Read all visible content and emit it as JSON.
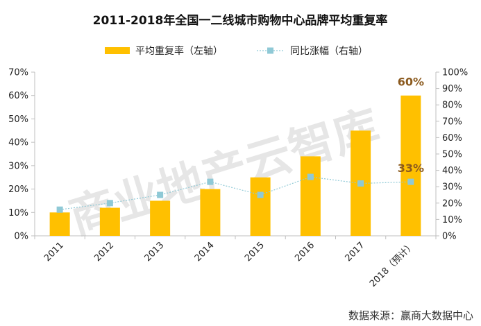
{
  "title": "2011-2018年全国一二线城市购物中心品牌平均重复率",
  "legend": {
    "bar_label": "平均重复率（左轴）",
    "line_label": "同比涨幅（右轴）"
  },
  "source": "数据来源：赢商大数据中心",
  "watermark": "商业地产云智库",
  "colors": {
    "bar": "#FFC000",
    "line": "#8FC9D6",
    "marker": "#8FC9D6",
    "data_label": "#8B5A1E",
    "axis": "#BFBFBF"
  },
  "chart_data": {
    "type": "bar",
    "categories": [
      "2011",
      "2012",
      "2013",
      "2014",
      "2015",
      "2016",
      "2017",
      "2018（预计）"
    ],
    "series": [
      {
        "name": "平均重复率（左轴）",
        "type": "bar",
        "axis": "left",
        "values": [
          10,
          12,
          15,
          20,
          25,
          34,
          45,
          60
        ]
      },
      {
        "name": "同比涨幅（右轴）",
        "type": "line",
        "axis": "right",
        "values": [
          16,
          20,
          25,
          33,
          25,
          36,
          32,
          33
        ]
      }
    ],
    "data_labels": [
      {
        "series": 0,
        "index": 7,
        "text": "60%"
      },
      {
        "series": 1,
        "index": 7,
        "text": "33%"
      }
    ],
    "y_left": {
      "ylim": [
        0,
        70
      ],
      "ticks": [
        0,
        10,
        20,
        30,
        40,
        50,
        60,
        70
      ],
      "tick_labels": [
        "0%",
        "10%",
        "20%",
        "30%",
        "40%",
        "50%",
        "60%",
        "70%"
      ]
    },
    "y_right": {
      "ylim": [
        0,
        100
      ],
      "ticks": [
        0,
        10,
        20,
        30,
        40,
        50,
        60,
        70,
        80,
        90,
        100
      ],
      "tick_labels": [
        "0%",
        "10%",
        "20%",
        "30%",
        "40%",
        "50%",
        "60%",
        "70%",
        "80%",
        "90%",
        "100%"
      ]
    },
    "grid": false,
    "legend_position": "top"
  }
}
